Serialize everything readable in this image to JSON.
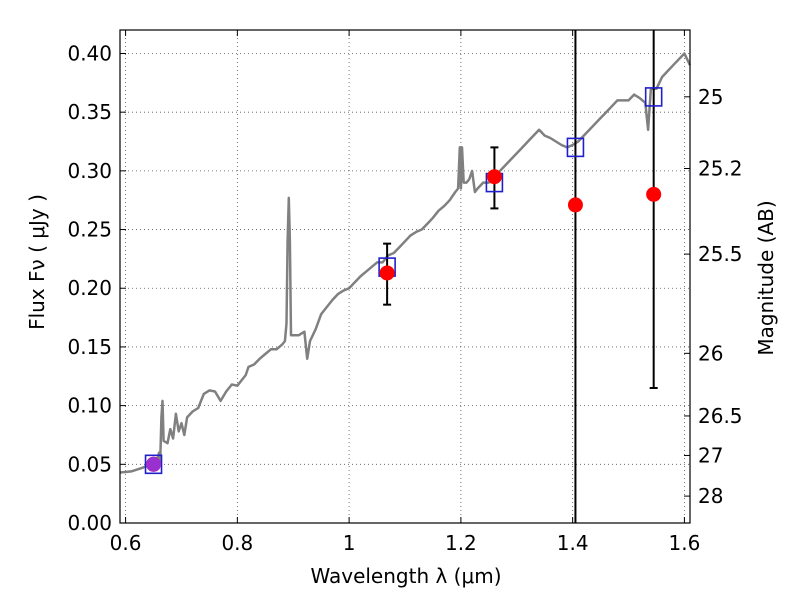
{
  "chart_data": {
    "type": "scatter",
    "title": "",
    "xlabel": "Wavelength  λ (μm)",
    "ylabel": "Flux  Fν ( μJy )",
    "y2label": "Magnitude (AB)",
    "xlim": [
      0.59,
      1.61
    ],
    "ylim": [
      0.0,
      0.42
    ],
    "grid": true,
    "x_ticks": [
      {
        "value": 0.6,
        "label": "0.6"
      },
      {
        "value": 0.8,
        "label": "0.8"
      },
      {
        "value": 1.0,
        "label": "1"
      },
      {
        "value": 1.2,
        "label": "1.2"
      },
      {
        "value": 1.4,
        "label": "1.4"
      },
      {
        "value": 1.6,
        "label": "1.6"
      }
    ],
    "y_ticks": [
      {
        "value": 0.0,
        "label": "0.00"
      },
      {
        "value": 0.05,
        "label": "0.05"
      },
      {
        "value": 0.1,
        "label": "0.10"
      },
      {
        "value": 0.15,
        "label": "0.15"
      },
      {
        "value": 0.2,
        "label": "0.20"
      },
      {
        "value": 0.25,
        "label": "0.25"
      },
      {
        "value": 0.3,
        "label": "0.30"
      },
      {
        "value": 0.35,
        "label": "0.35"
      },
      {
        "value": 0.4,
        "label": "0.40"
      }
    ],
    "y2_ticks": [
      {
        "value": 25,
        "label": "25"
      },
      {
        "value": 25.2,
        "label": "25.2"
      },
      {
        "value": 25.5,
        "label": "25.5"
      },
      {
        "value": 26,
        "label": "26"
      },
      {
        "value": 26.5,
        "label": "26.5"
      },
      {
        "value": 27,
        "label": "27"
      },
      {
        "value": 28,
        "label": "28"
      }
    ],
    "series": [
      {
        "kind": "line",
        "color": "#808080",
        "points": [
          [
            0.59,
            0.043
          ],
          [
            0.61,
            0.044
          ],
          [
            0.63,
            0.047
          ],
          [
            0.645,
            0.05
          ],
          [
            0.655,
            0.052
          ],
          [
            0.66,
            0.06
          ],
          [
            0.662,
            0.052
          ],
          [
            0.664,
            0.09
          ],
          [
            0.666,
            0.104
          ],
          [
            0.668,
            0.07
          ],
          [
            0.675,
            0.068
          ],
          [
            0.68,
            0.08
          ],
          [
            0.685,
            0.072
          ],
          [
            0.69,
            0.093
          ],
          [
            0.695,
            0.078
          ],
          [
            0.7,
            0.085
          ],
          [
            0.705,
            0.075
          ],
          [
            0.71,
            0.09
          ],
          [
            0.72,
            0.095
          ],
          [
            0.73,
            0.098
          ],
          [
            0.74,
            0.11
          ],
          [
            0.75,
            0.113
          ],
          [
            0.76,
            0.112
          ],
          [
            0.77,
            0.104
          ],
          [
            0.78,
            0.112
          ],
          [
            0.79,
            0.118
          ],
          [
            0.8,
            0.117
          ],
          [
            0.81,
            0.123
          ],
          [
            0.815,
            0.126
          ],
          [
            0.82,
            0.133
          ],
          [
            0.83,
            0.135
          ],
          [
            0.84,
            0.14
          ],
          [
            0.85,
            0.144
          ],
          [
            0.86,
            0.148
          ],
          [
            0.87,
            0.148
          ],
          [
            0.88,
            0.152
          ],
          [
            0.885,
            0.155
          ],
          [
            0.888,
            0.17
          ],
          [
            0.89,
            0.24
          ],
          [
            0.892,
            0.277
          ],
          [
            0.894,
            0.24
          ],
          [
            0.896,
            0.16
          ],
          [
            0.9,
            0.16
          ],
          [
            0.91,
            0.16
          ],
          [
            0.92,
            0.163
          ],
          [
            0.925,
            0.14
          ],
          [
            0.93,
            0.155
          ],
          [
            0.94,
            0.165
          ],
          [
            0.95,
            0.178
          ],
          [
            0.96,
            0.184
          ],
          [
            0.97,
            0.19
          ],
          [
            0.98,
            0.195
          ],
          [
            0.99,
            0.198
          ],
          [
            1.0,
            0.2
          ],
          [
            1.01,
            0.205
          ],
          [
            1.02,
            0.21
          ],
          [
            1.03,
            0.214
          ],
          [
            1.04,
            0.218
          ],
          [
            1.05,
            0.222
          ],
          [
            1.06,
            0.222
          ],
          [
            1.07,
            0.228
          ],
          [
            1.08,
            0.23
          ],
          [
            1.09,
            0.235
          ],
          [
            1.1,
            0.24
          ],
          [
            1.11,
            0.245
          ],
          [
            1.12,
            0.248
          ],
          [
            1.13,
            0.25
          ],
          [
            1.14,
            0.255
          ],
          [
            1.15,
            0.26
          ],
          [
            1.16,
            0.266
          ],
          [
            1.17,
            0.27
          ],
          [
            1.18,
            0.275
          ],
          [
            1.19,
            0.282
          ],
          [
            1.195,
            0.285
          ],
          [
            1.198,
            0.32
          ],
          [
            1.2,
            0.285
          ],
          [
            1.202,
            0.32
          ],
          [
            1.205,
            0.29
          ],
          [
            1.21,
            0.29
          ],
          [
            1.215,
            0.293
          ],
          [
            1.22,
            0.3
          ],
          [
            1.225,
            0.282
          ],
          [
            1.23,
            0.285
          ],
          [
            1.24,
            0.29
          ],
          [
            1.25,
            0.29
          ],
          [
            1.26,
            0.295
          ],
          [
            1.27,
            0.3
          ],
          [
            1.28,
            0.305
          ],
          [
            1.29,
            0.31
          ],
          [
            1.3,
            0.315
          ],
          [
            1.31,
            0.32
          ],
          [
            1.32,
            0.325
          ],
          [
            1.33,
            0.33
          ],
          [
            1.34,
            0.335
          ],
          [
            1.35,
            0.33
          ],
          [
            1.36,
            0.328
          ],
          [
            1.37,
            0.325
          ],
          [
            1.38,
            0.322
          ],
          [
            1.39,
            0.32
          ],
          [
            1.4,
            0.322
          ],
          [
            1.41,
            0.325
          ],
          [
            1.42,
            0.33
          ],
          [
            1.43,
            0.335
          ],
          [
            1.44,
            0.34
          ],
          [
            1.45,
            0.345
          ],
          [
            1.46,
            0.35
          ],
          [
            1.47,
            0.355
          ],
          [
            1.48,
            0.36
          ],
          [
            1.49,
            0.36
          ],
          [
            1.5,
            0.36
          ],
          [
            1.51,
            0.365
          ],
          [
            1.52,
            0.362
          ],
          [
            1.53,
            0.358
          ],
          [
            1.535,
            0.335
          ],
          [
            1.54,
            0.37
          ],
          [
            1.55,
            0.37
          ],
          [
            1.56,
            0.38
          ],
          [
            1.57,
            0.385
          ],
          [
            1.58,
            0.39
          ],
          [
            1.59,
            0.395
          ],
          [
            1.6,
            0.4
          ],
          [
            1.61,
            0.39
          ]
        ]
      },
      {
        "kind": "squares",
        "color": "#1f1fcf",
        "points": [
          [
            0.65,
            0.05
          ],
          [
            1.068,
            0.218
          ],
          [
            1.26,
            0.29
          ],
          [
            1.405,
            0.32
          ],
          [
            1.545,
            0.363
          ]
        ]
      },
      {
        "kind": "points",
        "color": "#ff0000",
        "points": [
          [
            0.65,
            0.05
          ],
          [
            1.068,
            0.213
          ],
          [
            1.26,
            0.295
          ],
          [
            1.405,
            0.271
          ],
          [
            1.545,
            0.28
          ]
        ],
        "errors": [
          {
            "x": 0.65,
            "lo": 0.046,
            "hi": 0.054
          },
          {
            "x": 1.068,
            "lo": 0.186,
            "hi": 0.238
          },
          {
            "x": 1.26,
            "lo": 0.268,
            "hi": 0.32
          },
          {
            "x": 1.405,
            "lo": 0.0,
            "hi": 0.42
          },
          {
            "x": 1.545,
            "lo": 0.115,
            "hi": 0.42
          }
        ]
      },
      {
        "kind": "points",
        "color": "#9b30d0",
        "points": [
          [
            0.65,
            0.05
          ]
        ]
      }
    ]
  }
}
